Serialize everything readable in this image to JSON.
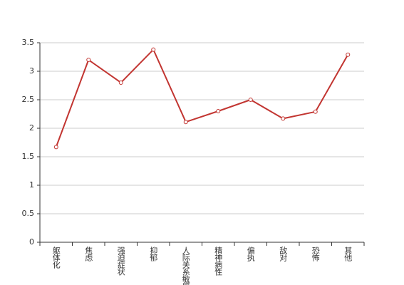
{
  "chart_data": {
    "type": "line",
    "categories": [
      "躯体化",
      "焦虑",
      "强迫症状",
      "抑郁",
      "人际关系敏感",
      "精神病性",
      "偏执",
      "敌对",
      "恐怖",
      "其他"
    ],
    "series": [
      {
        "color": "#c23531",
        "values": [
          1.67,
          3.2,
          2.8,
          3.38,
          2.11,
          2.3,
          2.5,
          2.17,
          2.29,
          3.29
        ]
      }
    ],
    "ylim": [
      0,
      3.5
    ],
    "yticks": [
      0,
      0.5,
      1,
      1.5,
      2,
      2.5,
      3,
      3.5
    ],
    "grid": true
  }
}
